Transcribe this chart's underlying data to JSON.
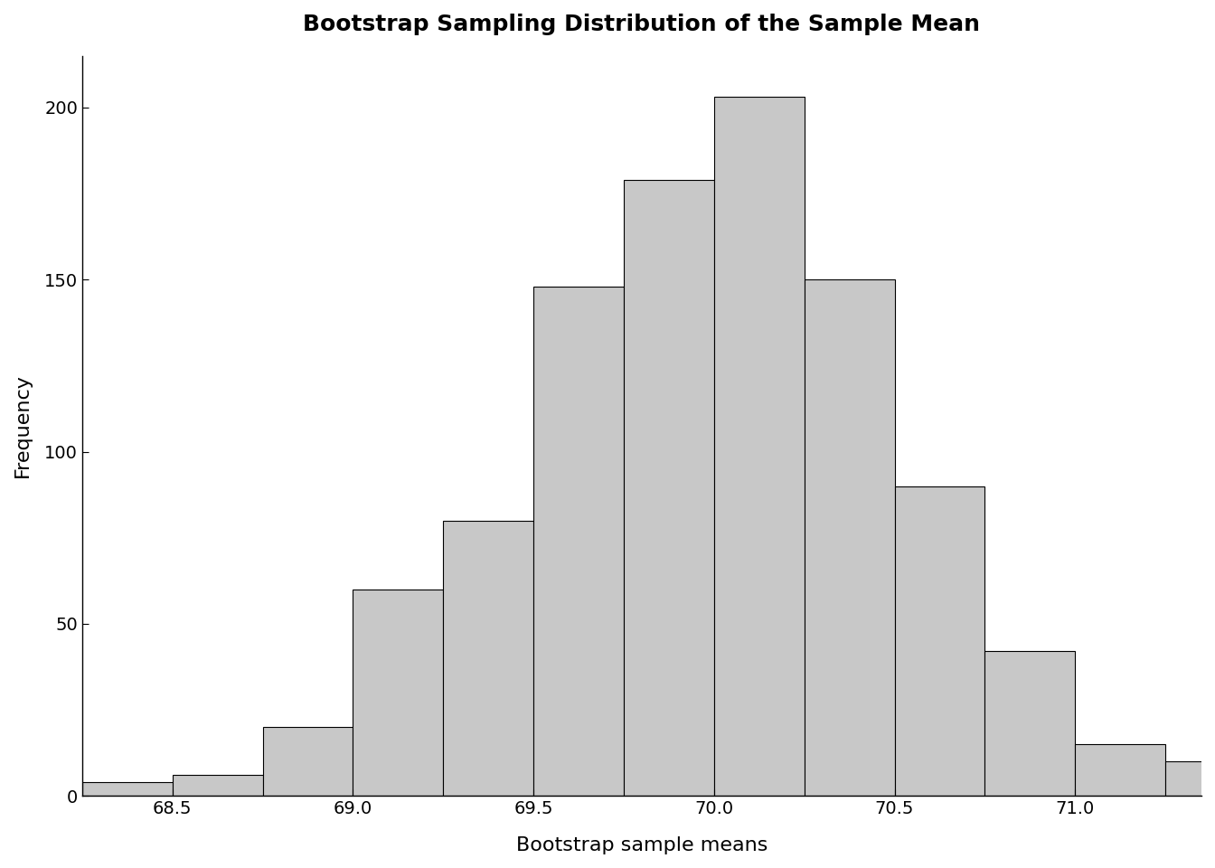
{
  "title": "Bootstrap Sampling Distribution of the Sample Mean",
  "xlabel": "Bootstrap sample means",
  "ylabel": "Frequency",
  "bar_color": "#c8c8c8",
  "bar_edge_color": "#000000",
  "background_color": "#ffffff",
  "xlim": [
    68.25,
    71.35
  ],
  "ylim": [
    0,
    215
  ],
  "yticks": [
    0,
    50,
    100,
    150,
    200
  ],
  "xticks": [
    68.5,
    69.0,
    69.5,
    70.0,
    70.5,
    71.0
  ],
  "bin_edges": [
    68.25,
    68.5,
    68.75,
    69.0,
    69.25,
    69.5,
    69.75,
    70.0,
    70.25,
    70.5,
    70.75,
    71.0,
    71.25,
    71.5
  ],
  "frequencies": [
    4,
    6,
    20,
    60,
    80,
    148,
    179,
    203,
    150,
    90,
    42,
    15,
    10
  ],
  "title_fontsize": 18,
  "label_fontsize": 16,
  "tick_fontsize": 14,
  "title_fontweight": "bold"
}
